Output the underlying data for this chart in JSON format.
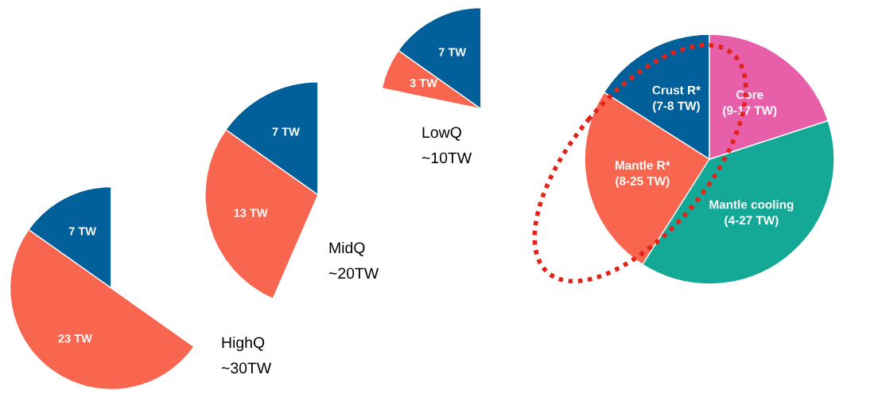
{
  "chart_data": [
    {
      "type": "pie",
      "title": "HighQ",
      "subtitle": "~30TW",
      "categories": [
        null,
        null,
        null
      ],
      "values": [
        7,
        23,
        16
      ],
      "colors": [
        "#01609a",
        "#f96650",
        "#ffffff"
      ],
      "value_labels": [
        "7 TW",
        "23 TW",
        null
      ]
    },
    {
      "type": "pie",
      "title": "MidQ",
      "subtitle": "~20TW",
      "categories": [
        null,
        null,
        null
      ],
      "values": [
        7,
        13,
        26
      ],
      "colors": [
        "#01609a",
        "#f96650",
        "#ffffff"
      ],
      "value_labels": [
        "7 TW",
        "13 TW",
        null
      ]
    },
    {
      "type": "pie",
      "title": "LowQ",
      "subtitle": "~10TW",
      "categories": [
        null,
        null,
        null
      ],
      "values": [
        7,
        3,
        36
      ],
      "colors": [
        "#01609a",
        "#f96650",
        "#ffffff"
      ],
      "value_labels": [
        "7 TW",
        "3 TW",
        null
      ]
    },
    {
      "type": "pie",
      "categories": [
        "Crust R*",
        "Mantle R*",
        "Mantle cooling",
        "Core"
      ],
      "values": [
        16,
        25,
        39,
        20
      ],
      "colors": [
        "#01609a",
        "#f96650",
        "#13a996",
        "#e75fa9"
      ],
      "value_labels": [
        "(7-8 TW)",
        "(8-25 TW)",
        "(4-27 TW)",
        "(9-17 TW)"
      ]
    }
  ]
}
